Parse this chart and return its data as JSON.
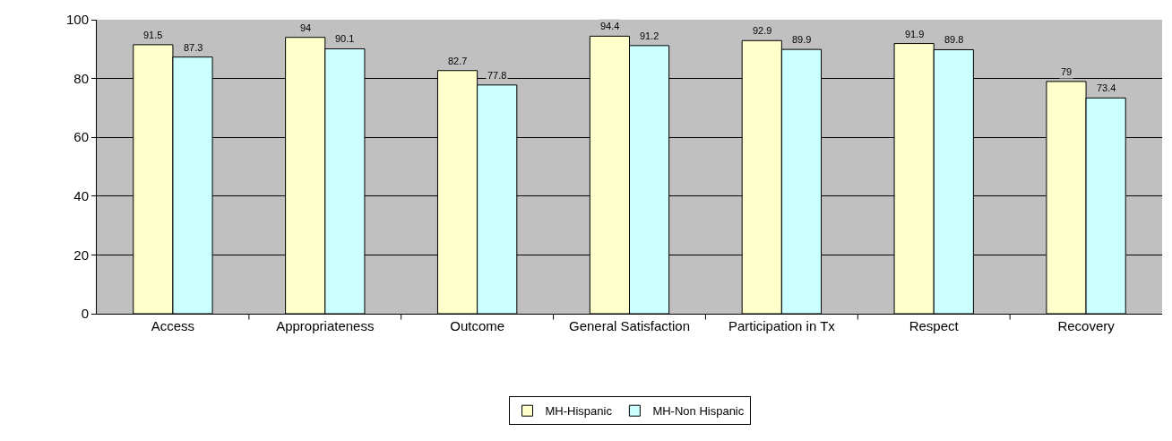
{
  "chart_data": {
    "type": "bar",
    "categories": [
      "Access",
      "Appropriateness",
      "Outcome",
      "General Satisfaction",
      "Participation in Tx",
      "Respect",
      "Recovery"
    ],
    "series": [
      {
        "name": "MH-Hispanic",
        "color": "#ffffcc",
        "values": [
          91.5,
          94,
          82.7,
          94.4,
          92.9,
          91.9,
          79
        ]
      },
      {
        "name": "MH-Non Hispanic",
        "color": "#ccffff",
        "values": [
          87.3,
          90.1,
          77.8,
          91.2,
          89.9,
          89.8,
          73.4
        ]
      }
    ],
    "ylim": [
      0,
      100
    ],
    "yticks": [
      0,
      20,
      40,
      60,
      80,
      100
    ],
    "grid": "y",
    "legend": "bottom",
    "data_labels": true
  }
}
